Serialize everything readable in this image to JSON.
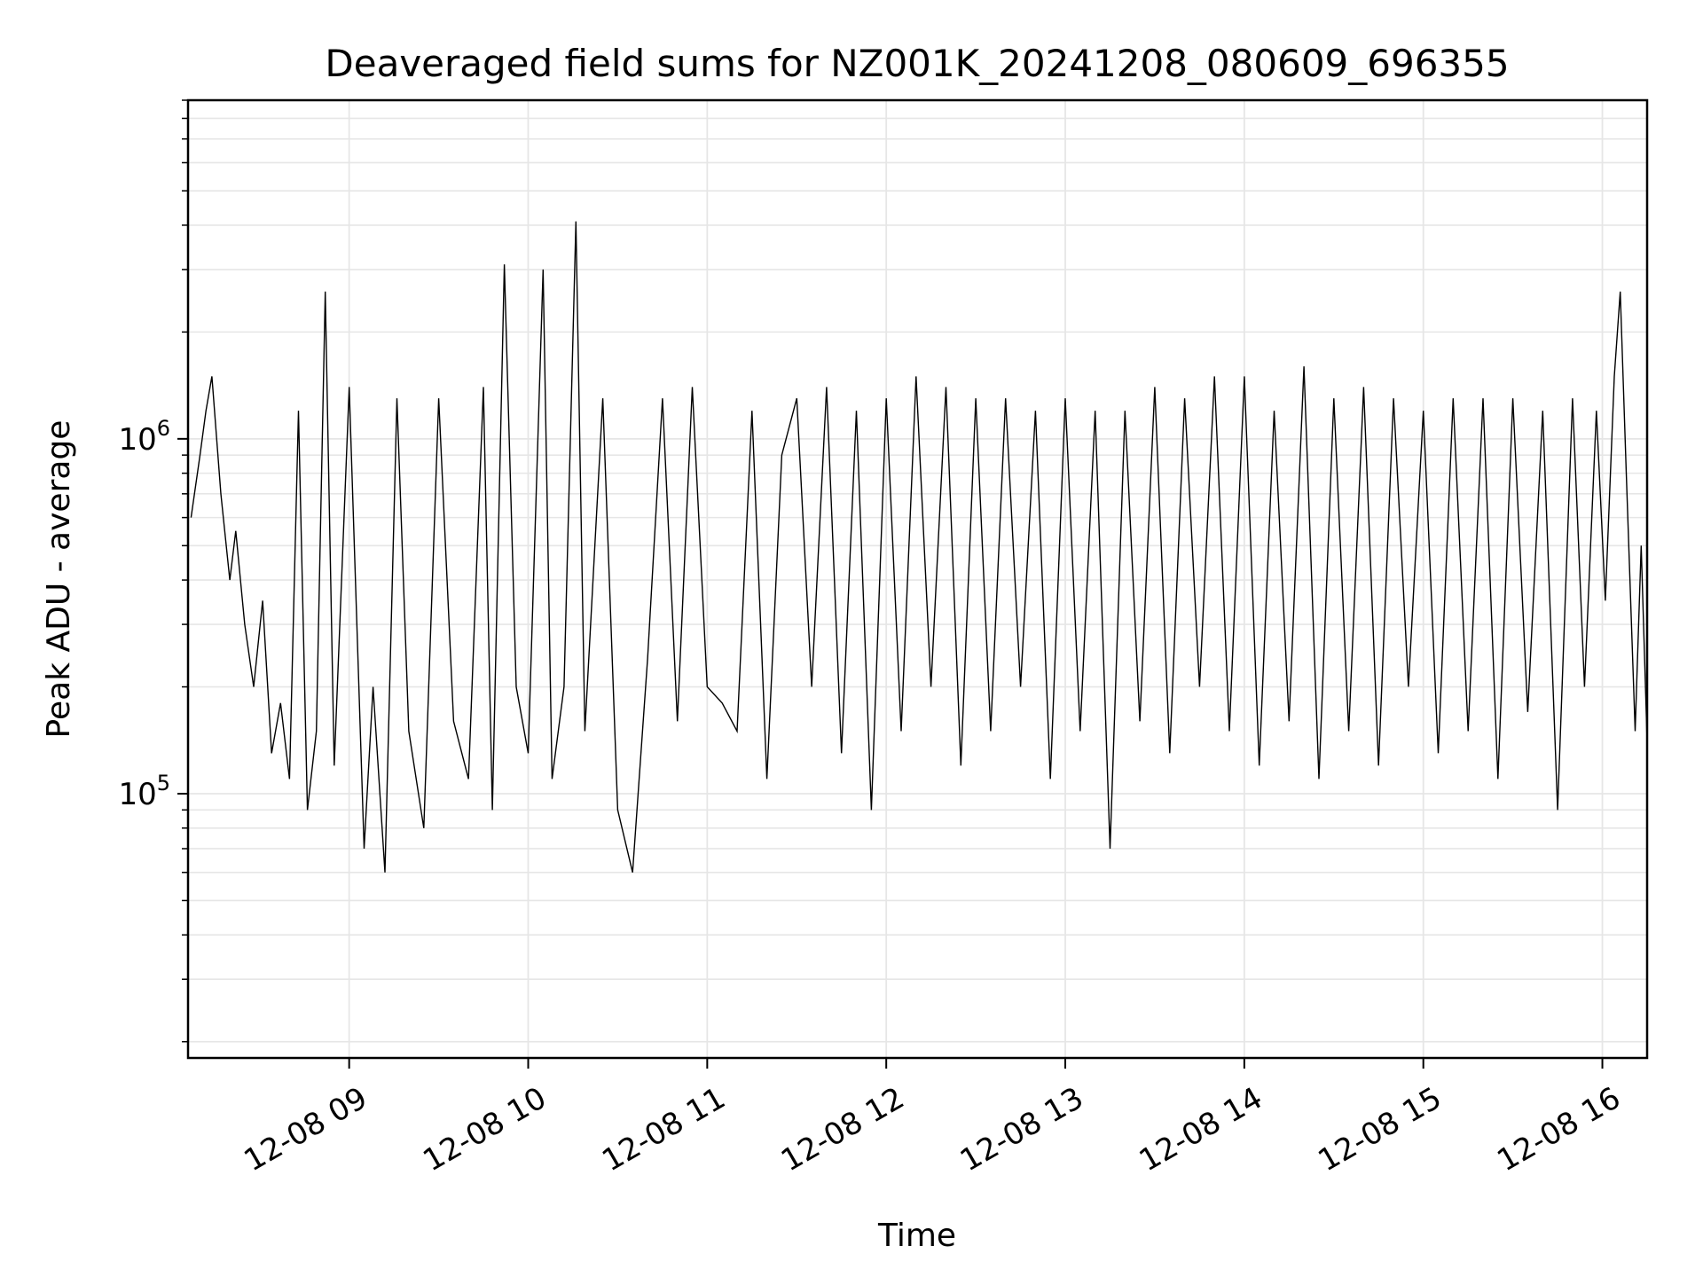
{
  "chart_data": {
    "type": "line",
    "title": "Deaveraged field sums for NZ001K_20241208_080609_696355",
    "xlabel": "Time",
    "ylabel": "Peak ADU - average",
    "y_scale": "log",
    "ylim": [
      18000,
      9000000
    ],
    "xlim": [
      "2024-12-08 08:06",
      "2024-12-08 16:15"
    ],
    "x_ticks": [
      {
        "time": "2024-12-08 09:00",
        "label": "12-08 09"
      },
      {
        "time": "2024-12-08 10:00",
        "label": "12-08 10"
      },
      {
        "time": "2024-12-08 11:00",
        "label": "12-08 11"
      },
      {
        "time": "2024-12-08 12:00",
        "label": "12-08 12"
      },
      {
        "time": "2024-12-08 13:00",
        "label": "12-08 13"
      },
      {
        "time": "2024-12-08 14:00",
        "label": "12-08 14"
      },
      {
        "time": "2024-12-08 15:00",
        "label": "12-08 15"
      },
      {
        "time": "2024-12-08 16:00",
        "label": "12-08 16"
      }
    ],
    "y_ticks": [
      {
        "value": 100000,
        "base": "10",
        "exp": "5"
      },
      {
        "value": 1000000,
        "base": "10",
        "exp": "6"
      }
    ],
    "grid": true,
    "line_color": "#000000",
    "grid_color": "#e6e6e6",
    "series": [
      {
        "x": [
          "2024-12-08 08:07",
          "2024-12-08 08:10",
          "2024-12-08 08:12",
          "2024-12-08 08:14",
          "2024-12-08 08:17",
          "2024-12-08 08:20",
          "2024-12-08 08:22",
          "2024-12-08 08:25",
          "2024-12-08 08:28",
          "2024-12-08 08:31",
          "2024-12-08 08:34",
          "2024-12-08 08:37",
          "2024-12-08 08:40",
          "2024-12-08 08:43",
          "2024-12-08 08:46",
          "2024-12-08 08:49",
          "2024-12-08 08:52",
          "2024-12-08 08:55",
          "2024-12-08 09:00",
          "2024-12-08 09:05",
          "2024-12-08 09:08",
          "2024-12-08 09:12",
          "2024-12-08 09:16",
          "2024-12-08 09:20",
          "2024-12-08 09:25",
          "2024-12-08 09:30",
          "2024-12-08 09:35",
          "2024-12-08 09:40",
          "2024-12-08 09:45",
          "2024-12-08 09:48",
          "2024-12-08 09:52",
          "2024-12-08 09:56",
          "2024-12-08 10:00",
          "2024-12-08 10:05",
          "2024-12-08 10:08",
          "2024-12-08 10:12",
          "2024-12-08 10:16",
          "2024-12-08 10:19",
          "2024-12-08 10:25",
          "2024-12-08 10:30",
          "2024-12-08 10:35",
          "2024-12-08 10:40",
          "2024-12-08 10:45",
          "2024-12-08 10:50",
          "2024-12-08 10:55",
          "2024-12-08 11:00",
          "2024-12-08 11:05",
          "2024-12-08 11:10",
          "2024-12-08 11:15",
          "2024-12-08 11:20",
          "2024-12-08 11:25",
          "2024-12-08 11:30",
          "2024-12-08 11:35",
          "2024-12-08 11:40",
          "2024-12-08 11:45",
          "2024-12-08 11:50",
          "2024-12-08 11:55",
          "2024-12-08 12:00",
          "2024-12-08 12:05",
          "2024-12-08 12:10",
          "2024-12-08 12:15",
          "2024-12-08 12:20",
          "2024-12-08 12:25",
          "2024-12-08 12:30",
          "2024-12-08 12:35",
          "2024-12-08 12:40",
          "2024-12-08 12:45",
          "2024-12-08 12:50",
          "2024-12-08 12:55",
          "2024-12-08 13:00",
          "2024-12-08 13:05",
          "2024-12-08 13:10",
          "2024-12-08 13:15",
          "2024-12-08 13:20",
          "2024-12-08 13:25",
          "2024-12-08 13:30",
          "2024-12-08 13:35",
          "2024-12-08 13:40",
          "2024-12-08 13:45",
          "2024-12-08 13:50",
          "2024-12-08 13:55",
          "2024-12-08 14:00",
          "2024-12-08 14:05",
          "2024-12-08 14:10",
          "2024-12-08 14:15",
          "2024-12-08 14:20",
          "2024-12-08 14:25",
          "2024-12-08 14:30",
          "2024-12-08 14:35",
          "2024-12-08 14:40",
          "2024-12-08 14:45",
          "2024-12-08 14:50",
          "2024-12-08 14:55",
          "2024-12-08 15:00",
          "2024-12-08 15:05",
          "2024-12-08 15:10",
          "2024-12-08 15:15",
          "2024-12-08 15:20",
          "2024-12-08 15:25",
          "2024-12-08 15:30",
          "2024-12-08 15:35",
          "2024-12-08 15:40",
          "2024-12-08 15:45",
          "2024-12-08 15:50",
          "2024-12-08 15:54",
          "2024-12-08 15:58",
          "2024-12-08 16:01",
          "2024-12-08 16:04",
          "2024-12-08 16:06",
          "2024-12-08 16:08",
          "2024-12-08 16:11",
          "2024-12-08 16:13",
          "2024-12-08 16:15"
        ],
        "y": [
          600000,
          900000,
          1200000,
          1500000,
          700000,
          400000,
          550000,
          300000,
          200000,
          350000,
          130000,
          180000,
          110000,
          1200000,
          90000,
          150000,
          2600000,
          120000,
          1400000,
          70000,
          200000,
          60000,
          1300000,
          150000,
          80000,
          1300000,
          160000,
          110000,
          1400000,
          90000,
          3100000,
          200000,
          130000,
          3000000,
          110000,
          200000,
          4100000,
          150000,
          1300000,
          90000,
          60000,
          240000,
          1300000,
          160000,
          1400000,
          200000,
          180000,
          150000,
          1200000,
          110000,
          900000,
          1300000,
          200000,
          1400000,
          130000,
          1200000,
          90000,
          1300000,
          150000,
          1500000,
          200000,
          1400000,
          120000,
          1300000,
          150000,
          1300000,
          200000,
          1200000,
          110000,
          1300000,
          150000,
          1200000,
          70000,
          1200000,
          160000,
          1400000,
          130000,
          1300000,
          200000,
          1500000,
          150000,
          1500000,
          120000,
          1200000,
          160000,
          1600000,
          110000,
          1300000,
          150000,
          1400000,
          120000,
          1300000,
          200000,
          1200000,
          130000,
          1300000,
          150000,
          1300000,
          110000,
          1300000,
          170000,
          1200000,
          90000,
          1300000,
          200000,
          1200000,
          350000,
          1500000,
          2600000,
          800000,
          150000,
          500000,
          140000
        ]
      }
    ]
  }
}
